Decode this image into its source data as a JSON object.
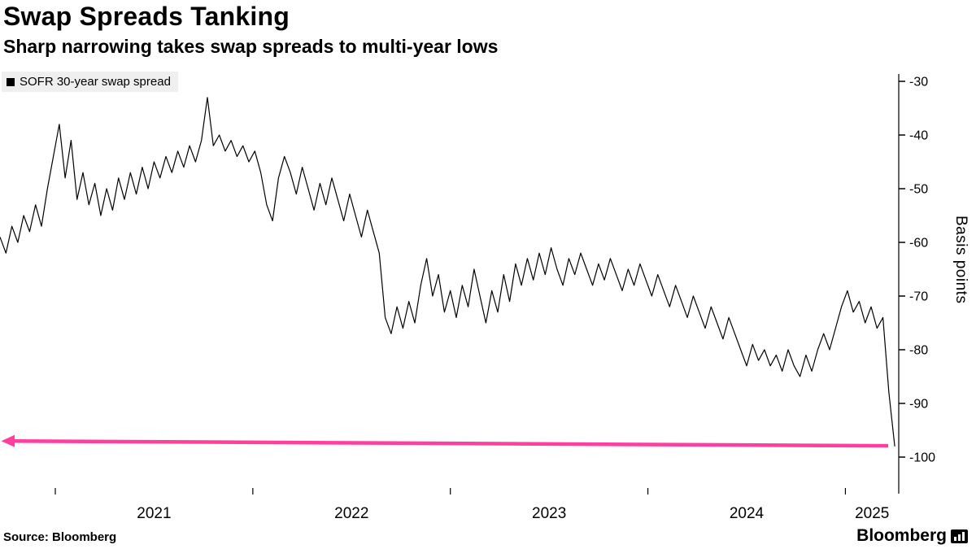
{
  "header": {
    "title": "Swap Spreads Tanking",
    "subtitle": "Sharp narrowing takes swap spreads to multi-year lows"
  },
  "legend": {
    "label": "SOFR 30-year swap spread"
  },
  "footer": {
    "source": "Source: Bloomberg",
    "brand": "Bloomberg"
  },
  "chart_data": {
    "type": "line",
    "title": "Swap Spreads Tanking",
    "subtitle": "Sharp narrowing takes swap spreads to multi-year lows",
    "ylabel": "Basis points",
    "grid": false,
    "legend_position": "top-left",
    "x_range": [
      2020.72,
      2025.27
    ],
    "y_ticks": [
      -30,
      -40,
      -50,
      -60,
      -70,
      -80,
      -90,
      -100
    ],
    "y_tick_labels": [
      "-30",
      "-40",
      "-50",
      "-60",
      "-70",
      "-80",
      "-90",
      "-100"
    ],
    "x_ticks": [
      2021,
      2022,
      2023,
      2024,
      2025
    ],
    "x_tick_labels": [
      "2021",
      "2022",
      "2023",
      "2024",
      "2025"
    ],
    "line_color": "#000000",
    "annotation_arrow": {
      "color": "#ff3fa0",
      "left_bp": -97.0,
      "right_bp": -97.9,
      "direction": "left"
    },
    "series": [
      {
        "name": "SOFR 30-year swap spread",
        "color": "#000000",
        "points": [
          [
            2020.72,
            -59
          ],
          [
            2020.75,
            -62
          ],
          [
            2020.78,
            -57
          ],
          [
            2020.81,
            -60
          ],
          [
            2020.84,
            -55
          ],
          [
            2020.87,
            -58
          ],
          [
            2020.9,
            -53
          ],
          [
            2020.93,
            -57
          ],
          [
            2020.96,
            -50
          ],
          [
            2020.99,
            -44
          ],
          [
            2021.02,
            -38
          ],
          [
            2021.05,
            -48
          ],
          [
            2021.08,
            -41
          ],
          [
            2021.11,
            -52
          ],
          [
            2021.14,
            -47
          ],
          [
            2021.17,
            -53
          ],
          [
            2021.2,
            -49
          ],
          [
            2021.23,
            -55
          ],
          [
            2021.26,
            -50
          ],
          [
            2021.29,
            -54
          ],
          [
            2021.32,
            -48
          ],
          [
            2021.35,
            -52
          ],
          [
            2021.38,
            -47
          ],
          [
            2021.41,
            -51
          ],
          [
            2021.44,
            -46
          ],
          [
            2021.47,
            -50
          ],
          [
            2021.5,
            -45
          ],
          [
            2021.53,
            -48
          ],
          [
            2021.56,
            -44
          ],
          [
            2021.59,
            -47
          ],
          [
            2021.62,
            -43
          ],
          [
            2021.65,
            -46
          ],
          [
            2021.68,
            -42
          ],
          [
            2021.71,
            -45
          ],
          [
            2021.74,
            -41
          ],
          [
            2021.77,
            -33
          ],
          [
            2021.8,
            -42
          ],
          [
            2021.83,
            -40
          ],
          [
            2021.86,
            -43
          ],
          [
            2021.89,
            -41
          ],
          [
            2021.92,
            -44
          ],
          [
            2021.95,
            -42
          ],
          [
            2021.98,
            -45
          ],
          [
            2022.01,
            -43
          ],
          [
            2022.04,
            -47
          ],
          [
            2022.07,
            -53
          ],
          [
            2022.1,
            -56
          ],
          [
            2022.13,
            -48
          ],
          [
            2022.16,
            -44
          ],
          [
            2022.19,
            -47
          ],
          [
            2022.22,
            -51
          ],
          [
            2022.25,
            -46
          ],
          [
            2022.28,
            -50
          ],
          [
            2022.31,
            -54
          ],
          [
            2022.34,
            -49
          ],
          [
            2022.37,
            -53
          ],
          [
            2022.4,
            -48
          ],
          [
            2022.43,
            -52
          ],
          [
            2022.46,
            -56
          ],
          [
            2022.49,
            -51
          ],
          [
            2022.52,
            -55
          ],
          [
            2022.55,
            -59
          ],
          [
            2022.58,
            -54
          ],
          [
            2022.61,
            -58
          ],
          [
            2022.64,
            -62
          ],
          [
            2022.67,
            -74
          ],
          [
            2022.7,
            -77
          ],
          [
            2022.73,
            -72
          ],
          [
            2022.76,
            -76
          ],
          [
            2022.79,
            -71
          ],
          [
            2022.82,
            -75
          ],
          [
            2022.85,
            -68
          ],
          [
            2022.88,
            -63
          ],
          [
            2022.91,
            -70
          ],
          [
            2022.94,
            -66
          ],
          [
            2022.97,
            -73
          ],
          [
            2023.0,
            -69
          ],
          [
            2023.03,
            -74
          ],
          [
            2023.06,
            -68
          ],
          [
            2023.09,
            -72
          ],
          [
            2023.12,
            -65
          ],
          [
            2023.15,
            -70
          ],
          [
            2023.18,
            -75
          ],
          [
            2023.21,
            -69
          ],
          [
            2023.24,
            -73
          ],
          [
            2023.27,
            -66
          ],
          [
            2023.3,
            -71
          ],
          [
            2023.33,
            -64
          ],
          [
            2023.36,
            -68
          ],
          [
            2023.39,
            -63
          ],
          [
            2023.42,
            -67
          ],
          [
            2023.45,
            -62
          ],
          [
            2023.48,
            -66
          ],
          [
            2023.51,
            -61
          ],
          [
            2023.54,
            -65
          ],
          [
            2023.57,
            -68
          ],
          [
            2023.6,
            -63
          ],
          [
            2023.63,
            -66
          ],
          [
            2023.66,
            -62
          ],
          [
            2023.69,
            -65
          ],
          [
            2023.72,
            -68
          ],
          [
            2023.75,
            -64
          ],
          [
            2023.78,
            -67
          ],
          [
            2023.81,
            -63
          ],
          [
            2023.84,
            -66
          ],
          [
            2023.87,
            -69
          ],
          [
            2023.9,
            -65
          ],
          [
            2023.93,
            -68
          ],
          [
            2023.96,
            -64
          ],
          [
            2023.99,
            -67
          ],
          [
            2024.02,
            -70
          ],
          [
            2024.05,
            -66
          ],
          [
            2024.08,
            -69
          ],
          [
            2024.11,
            -72
          ],
          [
            2024.14,
            -68
          ],
          [
            2024.17,
            -71
          ],
          [
            2024.2,
            -74
          ],
          [
            2024.23,
            -70
          ],
          [
            2024.26,
            -73
          ],
          [
            2024.29,
            -76
          ],
          [
            2024.32,
            -72
          ],
          [
            2024.35,
            -75
          ],
          [
            2024.38,
            -78
          ],
          [
            2024.41,
            -74
          ],
          [
            2024.44,
            -77
          ],
          [
            2024.47,
            -80
          ],
          [
            2024.5,
            -83
          ],
          [
            2024.53,
            -79
          ],
          [
            2024.56,
            -82
          ],
          [
            2024.59,
            -80
          ],
          [
            2024.62,
            -83
          ],
          [
            2024.65,
            -81
          ],
          [
            2024.68,
            -84
          ],
          [
            2024.71,
            -80
          ],
          [
            2024.74,
            -83
          ],
          [
            2024.77,
            -85
          ],
          [
            2024.8,
            -81
          ],
          [
            2024.83,
            -84
          ],
          [
            2024.86,
            -80
          ],
          [
            2024.89,
            -77
          ],
          [
            2024.92,
            -80
          ],
          [
            2024.95,
            -76
          ],
          [
            2024.98,
            -72
          ],
          [
            2025.01,
            -69
          ],
          [
            2025.04,
            -73
          ],
          [
            2025.07,
            -71
          ],
          [
            2025.1,
            -75
          ],
          [
            2025.13,
            -72
          ],
          [
            2025.16,
            -76
          ],
          [
            2025.19,
            -74
          ],
          [
            2025.22,
            -88
          ],
          [
            2025.25,
            -98
          ]
        ]
      }
    ]
  }
}
